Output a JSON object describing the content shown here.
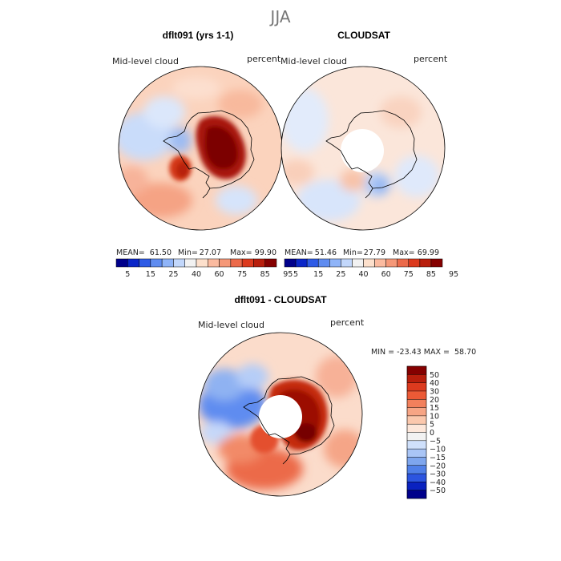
{
  "figure": {
    "season": "JJA",
    "colors": {
      "coast": "#000000",
      "outline": "#000000",
      "background": "#ffffff"
    }
  },
  "panels": {
    "model": {
      "title": "dflt091 (yrs 1-1)",
      "variable": "Mid-level cloud",
      "units": "percent",
      "stats": {
        "mean_label": "MEAN=",
        "mean": "61.50",
        "min_label": "Min=",
        "min": "27.07",
        "max_label": "Max=",
        "max": "99.90"
      },
      "colorbar": {
        "tick_labels": [
          "5",
          "15",
          "25",
          "40",
          "60",
          "75",
          "85",
          "95"
        ],
        "colors": [
          "#00008b",
          "#0a26c8",
          "#2e5be6",
          "#5f8cf0",
          "#8fb4f8",
          "#c2d7fb",
          "#f2f2f2",
          "#fde0cc",
          "#fbbba0",
          "#f59878",
          "#ec6a4a",
          "#dc3a1e",
          "#b81e0c",
          "#850000"
        ]
      }
    },
    "obs": {
      "title": "CLOUDSAT",
      "variable": "Mid-level cloud",
      "units": "percent",
      "stats": {
        "mean_label": "MEAN=",
        "mean": "51.46",
        "min_label": "Min=",
        "min": "27.79",
        "max_label": "Max=",
        "max": "69.99"
      },
      "colorbar": {
        "tick_labels": [
          "5",
          "15",
          "25",
          "40",
          "60",
          "75",
          "85",
          "95"
        ],
        "colors": [
          "#00008b",
          "#0a26c8",
          "#2e5be6",
          "#5f8cf0",
          "#8fb4f8",
          "#c2d7fb",
          "#f2f2f2",
          "#fde0cc",
          "#fbbba0",
          "#f59878",
          "#ec6a4a",
          "#dc3a1e",
          "#b81e0c",
          "#850000"
        ]
      }
    },
    "diff": {
      "title": "dflt091 - CLOUDSAT",
      "variable": "Mid-level cloud",
      "units": "percent",
      "range_text": "MIN = -23.43 MAX =  58.70",
      "colorbar": {
        "tick_labels": [
          "50",
          "40",
          "30",
          "20",
          "15",
          "10",
          "5",
          "0",
          "−5",
          "−10",
          "−15",
          "−20",
          "−30",
          "−40",
          "−50"
        ],
        "colors": [
          "#850000",
          "#b81e0c",
          "#dc3a1e",
          "#ec5a36",
          "#f2805c",
          "#f7a585",
          "#fbc8ad",
          "#fde7da",
          "#f2f2f2",
          "#cfe0fb",
          "#a9c5f6",
          "#7ea6ee",
          "#5080e8",
          "#2c55e0",
          "#0a22c0",
          "#00008b"
        ]
      }
    }
  }
}
